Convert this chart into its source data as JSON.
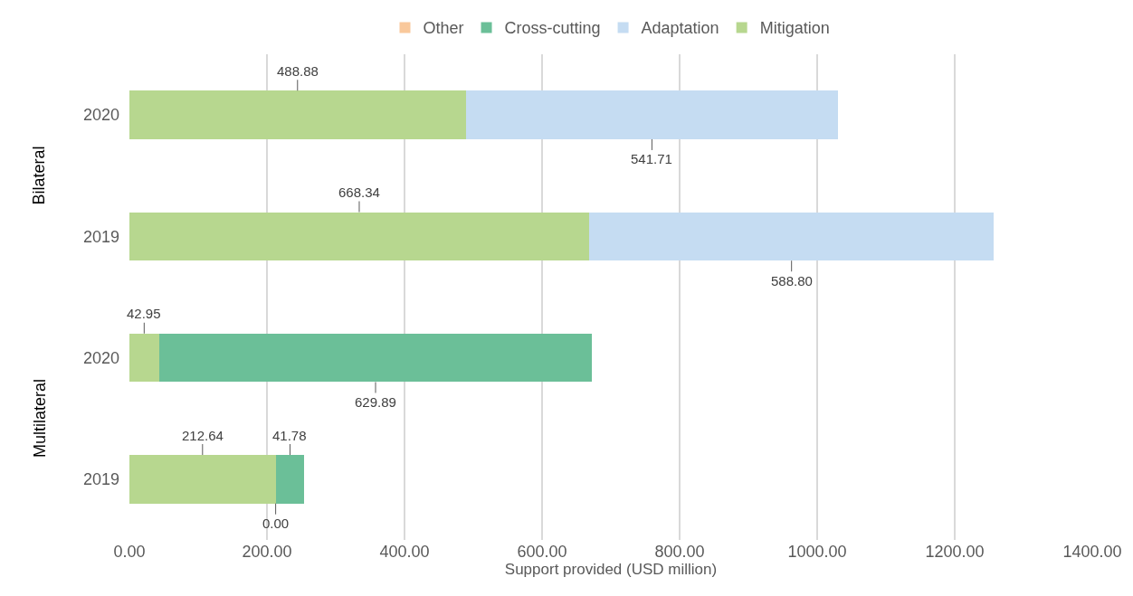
{
  "chart_data": {
    "type": "bar",
    "orientation": "horizontal",
    "stacked": true,
    "categories": [
      "2020",
      "2019",
      "2020",
      "2019"
    ],
    "series": [
      {
        "name": "Mitigation",
        "color": "#b7d78f",
        "values": [
          488.88,
          668.34,
          42.95,
          212.64
        ],
        "value_labels": [
          "488.88",
          "668.34",
          "42.95",
          "212.64"
        ]
      },
      {
        "name": "Adaptation",
        "color": "#c5dcf2",
        "values": [
          541.71,
          588.8,
          null,
          0.0
        ],
        "value_labels": [
          "541.71",
          "588.80",
          null,
          "0.00"
        ]
      },
      {
        "name": "Cross-cutting",
        "color": "#6bbf98",
        "values": [
          null,
          null,
          629.89,
          41.78
        ],
        "value_labels": [
          null,
          null,
          "629.89",
          "41.78"
        ]
      },
      {
        "name": "Other",
        "color": "#f9c89b",
        "values": [
          null,
          null,
          null,
          null
        ]
      }
    ],
    "annotations": [
      "Bilateral",
      "Multilateral"
    ],
    "xlabel": "Support provided (USD million)",
    "xlim": [
      0,
      1400
    ],
    "xticks": [
      {
        "value": 0,
        "label": "0.00"
      },
      {
        "value": 200,
        "label": "200.00"
      },
      {
        "value": 400,
        "label": "400.00"
      },
      {
        "value": 600,
        "label": "600.00"
      },
      {
        "value": 800,
        "label": "800.00"
      },
      {
        "value": 1000,
        "label": "1000.00"
      },
      {
        "value": 1200,
        "label": "1200.00"
      },
      {
        "value": 1400,
        "label": "1400.00"
      }
    ],
    "grid": "x",
    "legend": "top"
  }
}
